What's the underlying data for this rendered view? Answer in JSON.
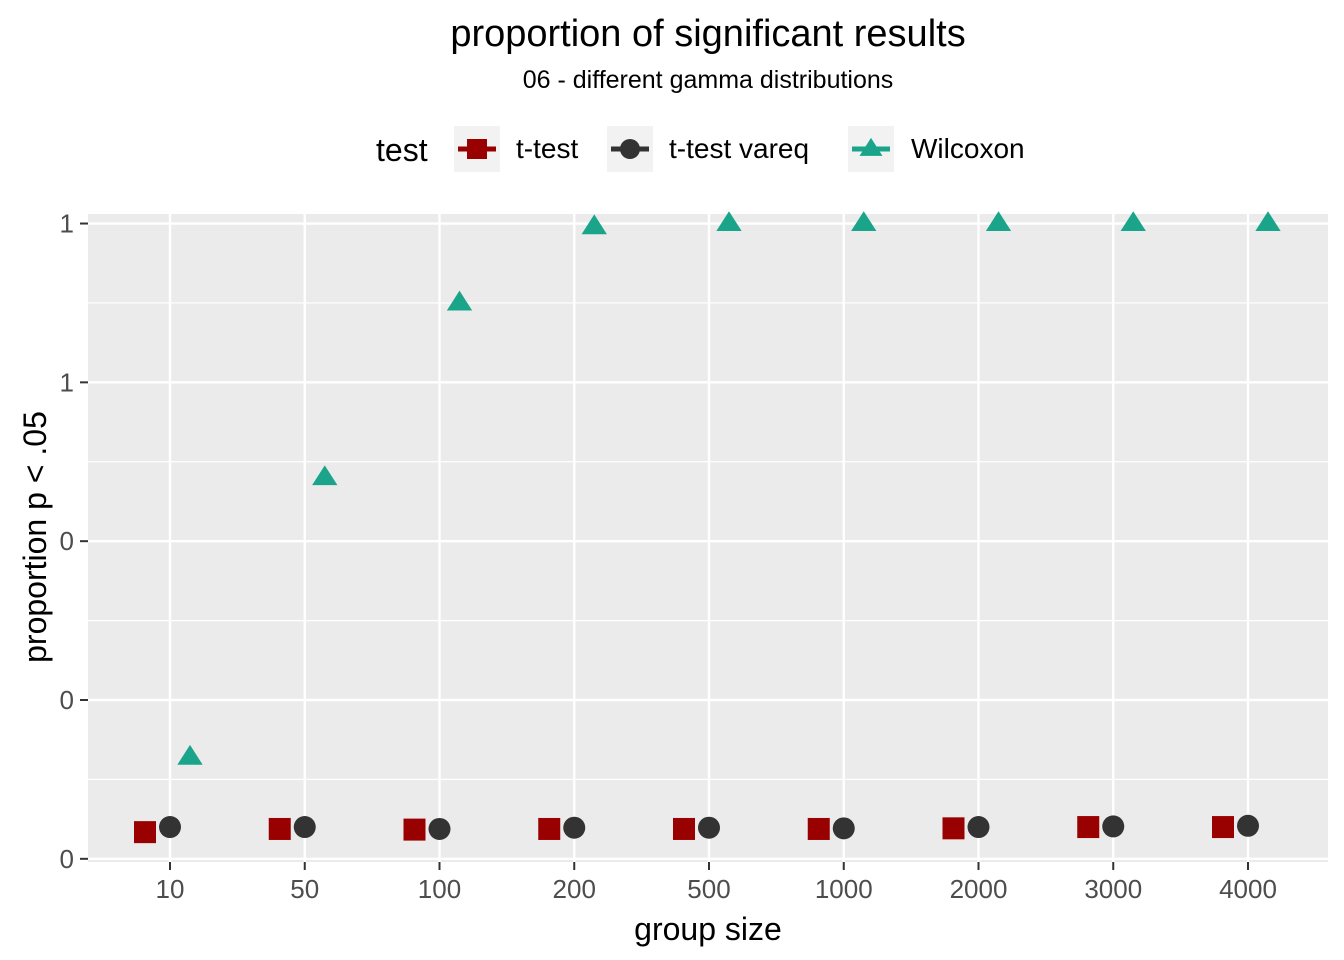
{
  "chart_data": {
    "type": "scatter",
    "title": "proportion of significant results",
    "subtitle": "06 - different gamma distributions",
    "xlabel": "group size",
    "ylabel": "proportion p < .05",
    "categories": [
      "10",
      "50",
      "100",
      "200",
      "500",
      "1000",
      "2000",
      "3000",
      "4000"
    ],
    "y_tick_labels": [
      "0",
      "0",
      "0",
      "1",
      "1"
    ],
    "y_ticks": [
      0,
      0.25,
      0.5,
      0.75,
      1
    ],
    "ylim": [
      -0.005,
      1.015
    ],
    "grid": true,
    "legend": {
      "title": "test",
      "position": "top"
    },
    "series": [
      {
        "name": "t-test",
        "shape": "square",
        "color": "#990000",
        "values": [
          0.042,
          0.047,
          0.046,
          0.047,
          0.047,
          0.047,
          0.048,
          0.05,
          0.05
        ]
      },
      {
        "name": "t-test vareq",
        "shape": "circle",
        "color": "#333333",
        "values": [
          0.05,
          0.05,
          0.047,
          0.049,
          0.049,
          0.048,
          0.05,
          0.051,
          0.052
        ]
      },
      {
        "name": "Wilcoxon",
        "shape": "triangle",
        "color": "#1aa58a",
        "values": [
          0.16,
          0.6,
          0.875,
          0.995,
          1.0,
          1.0,
          1.0,
          1.0,
          1.0
        ]
      }
    ]
  }
}
